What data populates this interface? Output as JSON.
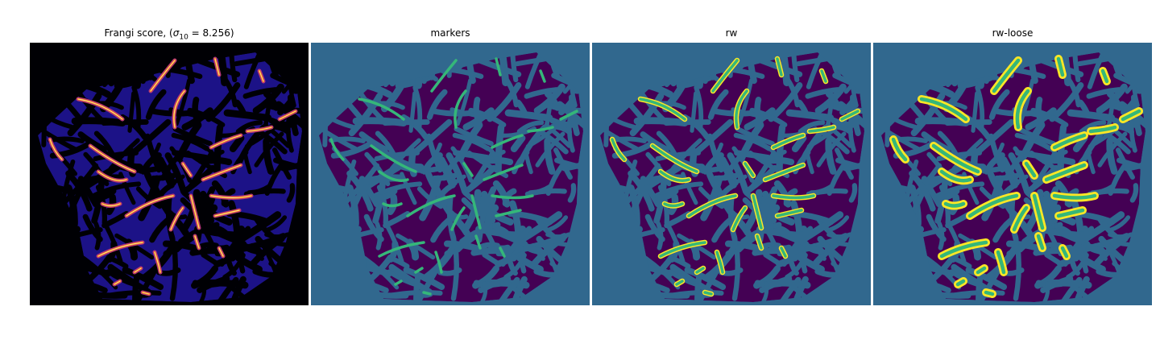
{
  "figure": {
    "panels": [
      {
        "id": "frangi",
        "title": "Frangi score, (",
        "title_sub": "10",
        "title_tail": " = 8.256)",
        "title_sigma": "σ",
        "colormap": "magma"
      },
      {
        "id": "markers",
        "title": "markers",
        "colormap": "viridis"
      },
      {
        "id": "rw",
        "title": "rw",
        "colormap": "viridis"
      },
      {
        "id": "rw-loose",
        "title": "rw-loose",
        "colormap": "viridis"
      }
    ],
    "colors": {
      "frangi_bg": "#000004",
      "frangi_low": "#1c1287",
      "frangi_mid": "#b63679",
      "frangi_high": "#fcfdbf",
      "viridis_bg": "#31688e",
      "viridis_tissue": "#440154",
      "viridis_marker": "#35b779",
      "viridis_edge": "#fde725"
    }
  }
}
